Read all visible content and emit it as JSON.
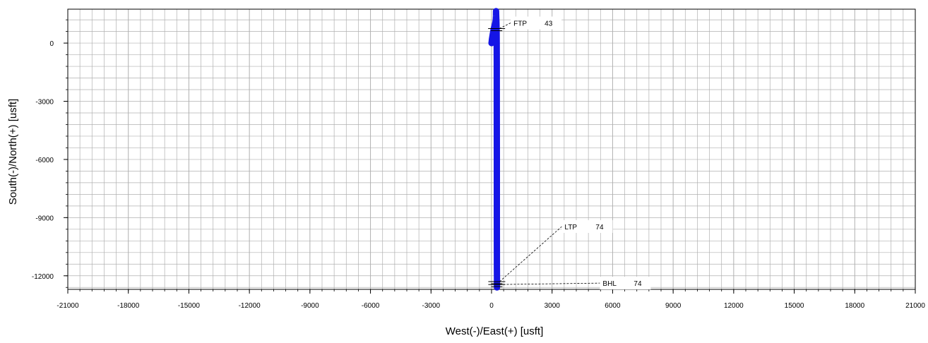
{
  "chart_data": {
    "type": "line",
    "xlabel": "West(-)/East(+)  [usft]",
    "ylabel": "South(-)/North(+)  [usft]",
    "xlim": [
      -21000,
      21000
    ],
    "ylim": [
      -12700,
      1750
    ],
    "x_ticks": [
      -21000,
      -18000,
      -15000,
      -12000,
      -9000,
      -6000,
      -3000,
      0,
      3000,
      6000,
      9000,
      12000,
      15000,
      18000,
      21000
    ],
    "y_ticks": [
      0,
      -3000,
      -6000,
      -9000,
      -12000
    ],
    "grid": true,
    "series": [
      {
        "color": "#1515e6",
        "points": [
          [
            0,
            0
          ],
          [
            20,
            200
          ],
          [
            60,
            450
          ],
          [
            100,
            700
          ],
          [
            150,
            900
          ],
          [
            190,
            1050
          ],
          [
            210,
            1200
          ],
          [
            220,
            1400
          ],
          [
            225,
            1650
          ],
          [
            230,
            1400
          ],
          [
            240,
            1100
          ],
          [
            248,
            800
          ],
          [
            252,
            500
          ],
          [
            256,
            0
          ],
          [
            258,
            -1000
          ],
          [
            260,
            -3000
          ],
          [
            262,
            -6000
          ],
          [
            264,
            -9000
          ],
          [
            266,
            -11600
          ],
          [
            268,
            -12300
          ],
          [
            270,
            -12600
          ]
        ]
      }
    ],
    "annotations": [
      {
        "name": "FTP",
        "value": "43",
        "x": 250,
        "y": 750
      },
      {
        "name": "LTP",
        "value": "74",
        "x": 260,
        "y": -12300
      },
      {
        "name": "BHL",
        "value": "74",
        "x": 260,
        "y": -12450
      }
    ],
    "colors": {
      "grid": "#b0b0b0",
      "axis": "#000000",
      "label_bg": "#ffffff"
    }
  }
}
